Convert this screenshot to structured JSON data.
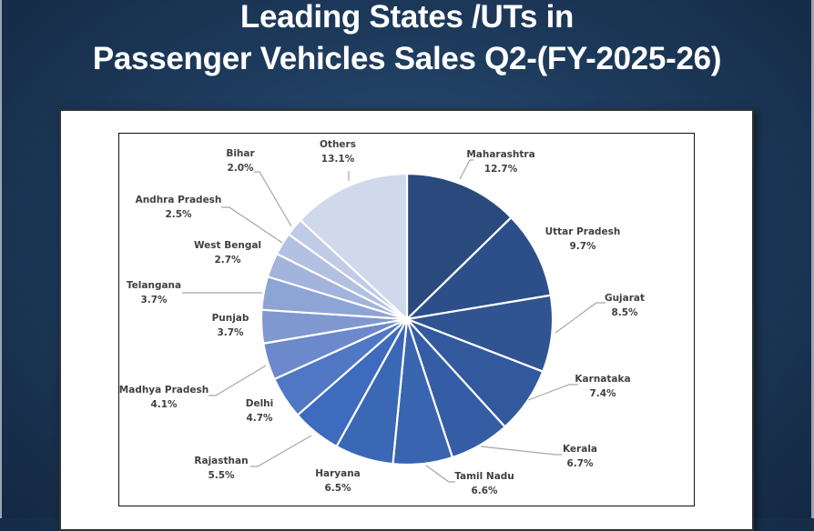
{
  "header": {
    "title_line1": "Leading States /UTs in",
    "title_line2": "Passenger Vehicles Sales Q2-(FY-2025-26)"
  },
  "chart_data": {
    "type": "pie",
    "title": "Leading States /UTs in Passenger Vehicles Sales Q2-(FY-2025-26)",
    "start_angle": "12 o'clock",
    "direction": "clockwise",
    "legend": "none (data labels with leader lines)",
    "slices": [
      {
        "label": "Maharashtra",
        "value": 12.7,
        "display": "12.7%",
        "color": "#2a4a7e"
      },
      {
        "label": "Uttar Pradesh",
        "value": 9.7,
        "display": "9.7%",
        "color": "#2c4f89"
      },
      {
        "label": "Gujarat",
        "value": 8.5,
        "display": "8.5%",
        "color": "#305491"
      },
      {
        "label": "Karnataka",
        "value": 7.4,
        "display": "7.4%",
        "color": "#32599e"
      },
      {
        "label": "Kerala",
        "value": 6.7,
        "display": "6.7%",
        "color": "#345da6"
      },
      {
        "label": "Tamil Nadu",
        "value": 6.6,
        "display": "6.6%",
        "color": "#3965b0"
      },
      {
        "label": "Haryana",
        "value": 6.5,
        "display": "6.5%",
        "color": "#3b68b5"
      },
      {
        "label": "Rajasthan",
        "value": 5.5,
        "display": "5.5%",
        "color": "#3e6bbd"
      },
      {
        "label": "Delhi",
        "value": 4.7,
        "display": "4.7%",
        "color": "#5077c3"
      },
      {
        "label": "Madhya Pradesh",
        "value": 4.1,
        "display": "4.1%",
        "color": "#6b89cb"
      },
      {
        "label": "Punjab",
        "value": 3.7,
        "display": "3.7%",
        "color": "#7f98d0"
      },
      {
        "label": "Telangana",
        "value": 3.7,
        "display": "3.7%",
        "color": "#8ea4d5"
      },
      {
        "label": "West Bengal",
        "value": 2.7,
        "display": "2.7%",
        "color": "#a2b3dc"
      },
      {
        "label": "Andhra Pradesh",
        "value": 2.5,
        "display": "2.5%",
        "color": "#b2c0e2"
      },
      {
        "label": "Bihar",
        "value": 2.0,
        "display": "2.0%",
        "color": "#c0cbe6"
      },
      {
        "label": "Others",
        "value": 13.1,
        "display": "13.1%",
        "color": "#d0d8ec"
      }
    ]
  }
}
